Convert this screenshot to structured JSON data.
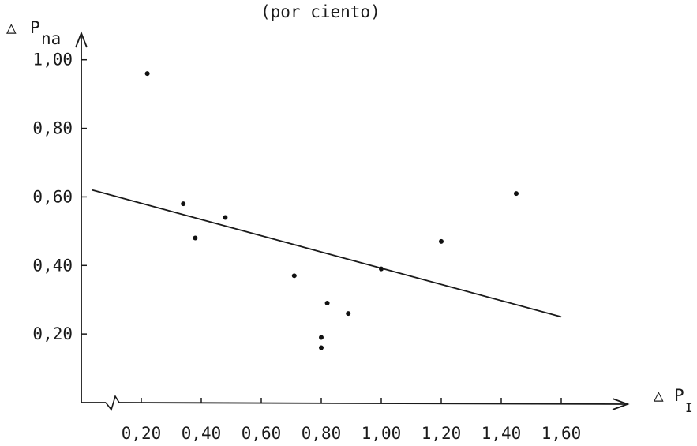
{
  "chart_data": {
    "type": "scatter",
    "title": "(por ciento)",
    "ylabel": {
      "symbol": "△",
      "base": "P",
      "sub": "na"
    },
    "xlabel": {
      "symbol": "△",
      "base": "P",
      "sub": "I"
    },
    "xlim": [
      0.0,
      1.75
    ],
    "ylim": [
      0.0,
      1.05
    ],
    "x_ticks": [
      "0,20",
      "0,40",
      "0,60",
      "0,80",
      "1,00",
      "1,20",
      "1,40",
      "1,60"
    ],
    "x_tick_values": [
      0.2,
      0.4,
      0.6,
      0.8,
      1.0,
      1.2,
      1.4,
      1.6
    ],
    "y_ticks": [
      "0,20",
      "0,40",
      "0,60",
      "0,80",
      "1,00"
    ],
    "y_tick_values": [
      0.2,
      0.4,
      0.6,
      0.8,
      1.0
    ],
    "points": [
      {
        "x": 0.22,
        "y": 0.96
      },
      {
        "x": 0.34,
        "y": 0.58
      },
      {
        "x": 0.38,
        "y": 0.48
      },
      {
        "x": 0.48,
        "y": 0.54
      },
      {
        "x": 0.71,
        "y": 0.37
      },
      {
        "x": 0.8,
        "y": 0.19
      },
      {
        "x": 0.8,
        "y": 0.16
      },
      {
        "x": 0.82,
        "y": 0.29
      },
      {
        "x": 0.89,
        "y": 0.26
      },
      {
        "x": 1.0,
        "y": 0.39
      },
      {
        "x": 1.2,
        "y": 0.47
      },
      {
        "x": 1.45,
        "y": 0.61
      }
    ],
    "regression": {
      "x": [
        0.0,
        1.6
      ],
      "y": [
        0.62,
        0.25
      ]
    },
    "grid": false,
    "axis_break": true
  }
}
